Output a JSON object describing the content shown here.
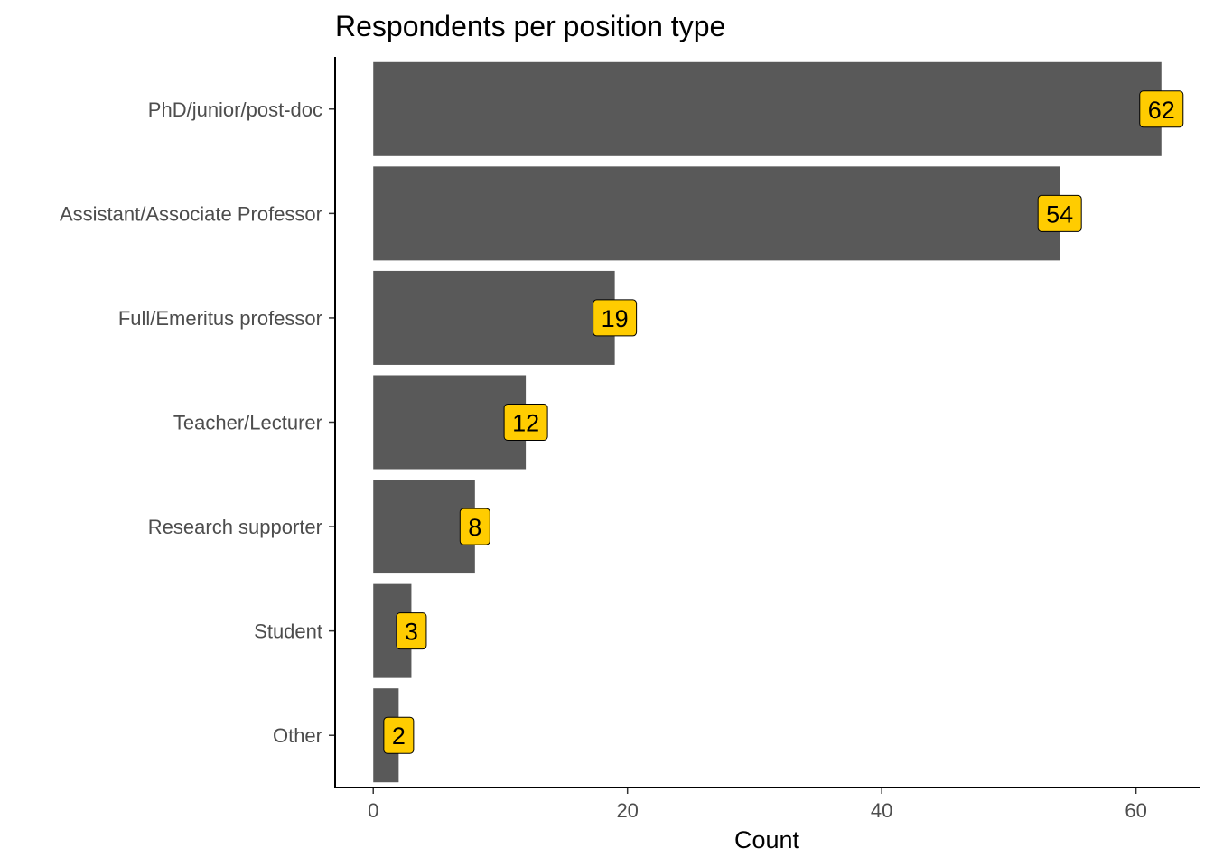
{
  "chart_data": {
    "type": "bar",
    "orientation": "horizontal",
    "title": "Respondents per position type",
    "xlabel": "Count",
    "ylabel": "",
    "categories": [
      "PhD/junior/post-doc",
      "Assistant/Associate Professor",
      "Full/Emeritus professor",
      "Teacher/Lecturer",
      "Research supporter",
      "Student",
      "Other"
    ],
    "values": [
      62,
      54,
      19,
      12,
      8,
      3,
      2
    ],
    "xlim": [
      -3,
      65
    ],
    "xticks": [
      0,
      20,
      40,
      60
    ],
    "grid": false,
    "legend": "none",
    "colors": {
      "bar": "#595959",
      "label_fill": "#ffcc00",
      "label_stroke": "#000000",
      "axis": "#000000",
      "tick_text": "#4d4d4d"
    }
  }
}
